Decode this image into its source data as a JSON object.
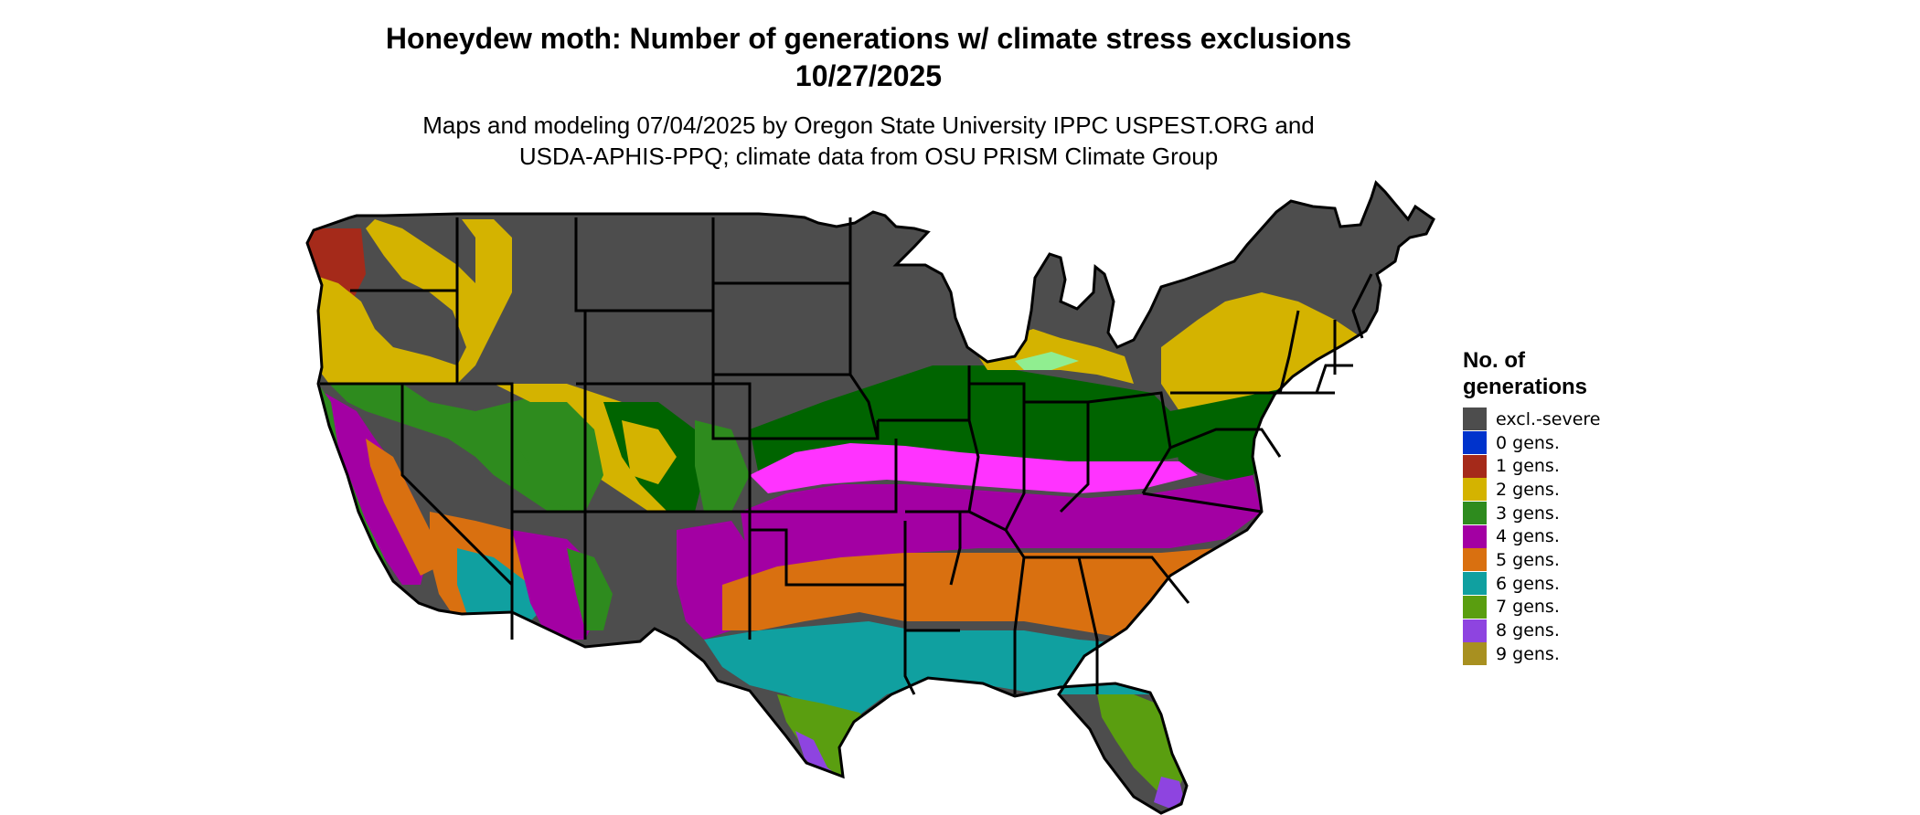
{
  "title_line1": "Honeydew moth: Number of generations w/ climate stress exclusions",
  "title_line2": "10/27/2025",
  "subtitle_line1": "Maps and modeling 07/04/2025 by Oregon State University IPPC USPEST.ORG and",
  "subtitle_line2": "USDA-APHIS-PPQ; climate data from OSU PRISM Climate Group",
  "legend": {
    "title_line1": "No. of",
    "title_line2": "generations",
    "items": [
      {
        "label": "excl.-severe",
        "color": "#4d4d4d"
      },
      {
        "label": "0 gens.",
        "color": "#0033cc"
      },
      {
        "label": "1 gens.",
        "color": "#a52a1a"
      },
      {
        "label": "2 gens.",
        "color": "#d4b300"
      },
      {
        "label": "3 gens.",
        "color": "#2e8b1e"
      },
      {
        "label": "4 gens.",
        "color": "#a300a3"
      },
      {
        "label": "5 gens.",
        "color": "#d97010"
      },
      {
        "label": "6 gens.",
        "color": "#10a0a0"
      },
      {
        "label": "7 gens.",
        "color": "#5a9e10"
      },
      {
        "label": "8 gens.",
        "color": "#8e44e0"
      },
      {
        "label": "9 gens.",
        "color": "#a89020"
      }
    ]
  },
  "map_colors": {
    "gen3_dark": "#006400",
    "gen4_light": "#ff33ff",
    "gen6_light": "#00e0e0",
    "gen7_light": "#7fff3a",
    "gen2_light": "#90ee90",
    "border": "#000000"
  }
}
